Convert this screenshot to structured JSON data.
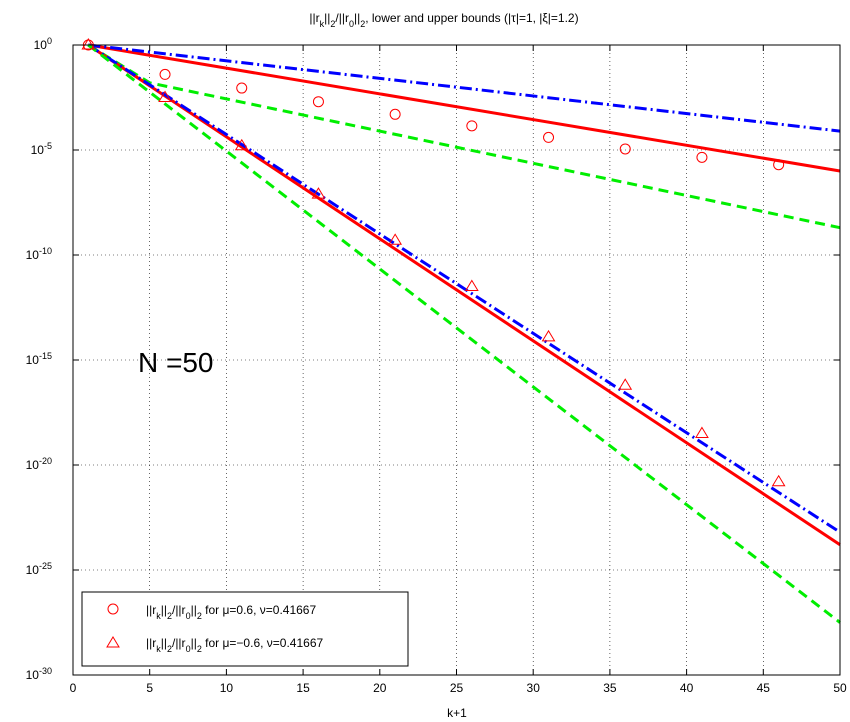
{
  "chart_data": {
    "type": "line",
    "title": "||r_k||_2/||r_0||_2, lower and upper bounds (|τ|=1, |ξ|=1.2)",
    "title_parts": {
      "t1": "||r",
      "t_k": "k",
      "t2": "||",
      "t_2a": "2",
      "t3": "/||r",
      "t_0": "0",
      "t4": "||",
      "t_2b": "2",
      "t5": ", lower and upper bounds (|τ|=1, |ξ|=1.2)"
    },
    "xlabel": "k+1",
    "ylabel": "",
    "xlim": [
      0,
      50
    ],
    "ylim_log10": [
      -30,
      0
    ],
    "y_scale": "log",
    "grid": true,
    "x_ticks": [
      0,
      5,
      10,
      15,
      20,
      25,
      30,
      35,
      40,
      45,
      50
    ],
    "y_ticks": [
      {
        "base": "10",
        "exp": "0"
      },
      {
        "base": "10",
        "exp": "-5"
      },
      {
        "base": "10",
        "exp": "-10"
      },
      {
        "base": "10",
        "exp": "-15"
      },
      {
        "base": "10",
        "exp": "-20"
      },
      {
        "base": "10",
        "exp": "-25"
      },
      {
        "base": "10",
        "exp": "-30"
      }
    ],
    "annotation": "N =50",
    "lines": [
      {
        "role": "residual mu=0.6",
        "style": "solid",
        "color": "#ff0000",
        "x": [
          1,
          50
        ],
        "log10_y": [
          0,
          -6.0
        ]
      },
      {
        "role": "upper bound mu=0.6",
        "style": "dashdot",
        "color": "#0000ff",
        "x": [
          1,
          50
        ],
        "log10_y": [
          0,
          -4.1
        ]
      },
      {
        "role": "lower bound mu=0.6",
        "style": "dashed",
        "color": "#00ee00",
        "x": [
          1,
          5,
          50
        ],
        "log10_y": [
          0,
          -1.8,
          -8.7
        ]
      },
      {
        "role": "residual mu=-0.6",
        "style": "solid",
        "color": "#ff0000",
        "x": [
          1,
          50
        ],
        "log10_y": [
          0,
          -23.8
        ]
      },
      {
        "role": "upper bound mu=-0.6",
        "style": "dashdot",
        "color": "#0000ff",
        "x": [
          1,
          50
        ],
        "log10_y": [
          0,
          -23.2
        ]
      },
      {
        "role": "lower bound mu=-0.6",
        "style": "dashed",
        "color": "#00ee00",
        "x": [
          1,
          50
        ],
        "log10_y": [
          0,
          -27.5
        ]
      }
    ],
    "series": [
      {
        "name": "||r_k||_2/||r_0||_2 for μ=0.6, ν=0.41667",
        "marker": "circle",
        "color": "#ff0000",
        "x": [
          1,
          6,
          11,
          16,
          21,
          26,
          31,
          36,
          41,
          46
        ],
        "log10_y": [
          0,
          -1.4,
          -2.05,
          -2.7,
          -3.3,
          -3.85,
          -4.4,
          -4.95,
          -5.35,
          -5.7
        ]
      },
      {
        "name": "||r_k||_2/||r_0||_2 for μ=−0.6, ν=0.41667",
        "marker": "triangle",
        "color": "#ff0000",
        "x": [
          1,
          6,
          11,
          16,
          21,
          26,
          31,
          36,
          41,
          46
        ],
        "log10_y": [
          0,
          -2.5,
          -4.8,
          -7.1,
          -9.3,
          -11.5,
          -13.9,
          -16.2,
          -18.5,
          -20.8
        ]
      }
    ],
    "legend": {
      "placement": "bottom-left",
      "entries": [
        {
          "marker": "circle",
          "pre": "||r",
          "sub_k": "k",
          "mid1": "||",
          "sub_a": "2",
          "mid2": "/||r",
          "sub_0": "0",
          "mid3": "||",
          "sub_b": "2",
          "post": " for μ=0.6, ν=0.41667"
        },
        {
          "marker": "triangle",
          "pre": "||r",
          "sub_k": "k",
          "mid1": "||",
          "sub_a": "2",
          "mid2": "/||r",
          "sub_0": "0",
          "mid3": "||",
          "sub_b": "2",
          "post": " for μ=−0.6, ν=0.41667"
        }
      ]
    }
  }
}
